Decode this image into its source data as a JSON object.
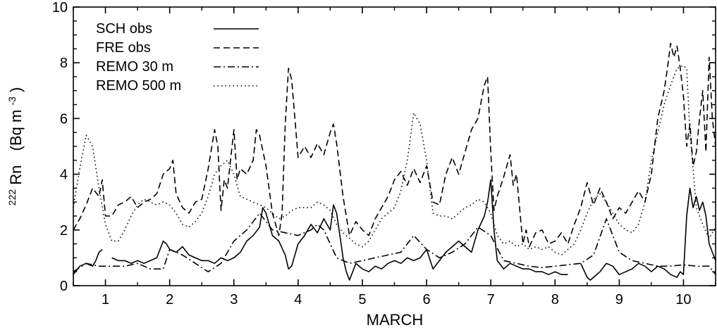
{
  "chart_data": {
    "type": "line",
    "xlabel": "MARCH",
    "ylabel_main": "Rn",
    "ylabel_superscript": "222",
    "ylabel_unit": "(Bq m",
    "ylabel_unit_exp": "-3",
    "ylabel_unit_close": ")",
    "xlim": [
      0.5,
      10.5
    ],
    "ylim": [
      0,
      10
    ],
    "xticks": [
      1,
      2,
      3,
      4,
      5,
      6,
      7,
      8,
      9,
      10
    ],
    "xtick_labels": [
      "1",
      "2",
      "3",
      "4",
      "5",
      "6",
      "7",
      "8",
      "9",
      "10"
    ],
    "yticks": [
      0,
      2,
      4,
      6,
      8,
      10
    ],
    "ytick_labels": [
      "0",
      "2",
      "4",
      "6",
      "8",
      "10"
    ],
    "legend_position": "top-left",
    "grid": false,
    "series": [
      {
        "name": "SCH    obs",
        "dash": "solid",
        "x": [
          0.5,
          0.6,
          0.7,
          0.8,
          0.85,
          0.9,
          0.95,
          1.0,
          1.1,
          1.2,
          1.3,
          1.4,
          1.5,
          1.6,
          1.7,
          1.8,
          1.9,
          1.95,
          2.0,
          2.1,
          2.2,
          2.3,
          2.4,
          2.5,
          2.6,
          2.7,
          2.8,
          2.9,
          3.0,
          3.1,
          3.2,
          3.3,
          3.4,
          3.45,
          3.5,
          3.6,
          3.7,
          3.8,
          3.85,
          3.9,
          4.0,
          4.1,
          4.2,
          4.3,
          4.4,
          4.5,
          4.55,
          4.6,
          4.65,
          4.7,
          4.75,
          4.8,
          4.9,
          5.0,
          5.1,
          5.2,
          5.3,
          5.4,
          5.5,
          5.6,
          5.7,
          5.8,
          5.9,
          6.0,
          6.1,
          6.2,
          6.3,
          6.4,
          6.5,
          6.6,
          6.7,
          6.8,
          6.9,
          6.95,
          7.0,
          7.05,
          7.1,
          7.2,
          7.3,
          7.4,
          7.5,
          7.6,
          7.7,
          7.8,
          7.9,
          8.0,
          8.1,
          8.2,
          8.3,
          8.4,
          8.5,
          8.55,
          8.6,
          8.7,
          8.8,
          8.9,
          9.0,
          9.1,
          9.2,
          9.3,
          9.4,
          9.5,
          9.6,
          9.7,
          9.8,
          9.9,
          9.95,
          10.0,
          10.05,
          10.1,
          10.15,
          10.2,
          10.25,
          10.3,
          10.35,
          10.4,
          10.5
        ],
        "y": [
          0.4,
          0.7,
          0.8,
          0.7,
          0.9,
          1.2,
          1.3,
          null,
          1.0,
          0.9,
          0.9,
          0.8,
          0.9,
          0.8,
          0.9,
          1.0,
          1.6,
          1.5,
          1.3,
          1.2,
          1.4,
          1.1,
          1.0,
          0.9,
          0.9,
          0.8,
          1.0,
          0.9,
          1.0,
          1.2,
          1.6,
          1.8,
          2.1,
          2.8,
          2.6,
          1.8,
          1.6,
          1.1,
          0.6,
          0.7,
          1.5,
          1.8,
          2.2,
          1.9,
          2.4,
          2.0,
          2.9,
          2.6,
          1.8,
          1.0,
          0.5,
          0.2,
          0.8,
          0.6,
          0.5,
          0.7,
          0.6,
          0.8,
          0.9,
          0.8,
          1.0,
          0.9,
          1.0,
          1.3,
          0.6,
          0.9,
          1.2,
          1.4,
          1.6,
          1.4,
          1.2,
          2.0,
          2.5,
          3.0,
          3.8,
          2.0,
          0.9,
          0.6,
          0.8,
          0.7,
          0.6,
          0.6,
          0.5,
          0.5,
          0.4,
          0.5,
          0.4,
          0.4,
          null,
          0.8,
          0.3,
          0.2,
          0.3,
          0.5,
          0.8,
          0.7,
          0.4,
          0.5,
          0.6,
          0.8,
          0.7,
          0.5,
          0.7,
          0.6,
          0.4,
          0.3,
          0.5,
          0.4,
          2.5,
          3.5,
          2.8,
          3.2,
          2.7,
          3.0,
          2.5,
          1.5,
          0.9
        ]
      },
      {
        "name": "FRE     obs",
        "dash": "dashed",
        "x": [
          0.5,
          0.6,
          0.7,
          0.8,
          0.9,
          0.95,
          1.0,
          1.1,
          1.2,
          1.3,
          1.4,
          1.5,
          1.6,
          1.7,
          1.8,
          1.9,
          2.0,
          2.05,
          2.1,
          2.2,
          2.3,
          2.4,
          2.5,
          2.6,
          2.7,
          2.75,
          2.8,
          2.85,
          2.9,
          3.0,
          3.05,
          3.1,
          3.2,
          3.3,
          3.35,
          3.4,
          3.5,
          3.6,
          3.7,
          3.75,
          3.8,
          3.85,
          3.9,
          3.95,
          4.0,
          4.1,
          4.2,
          4.3,
          4.4,
          4.5,
          4.55,
          4.6,
          4.7,
          4.8,
          4.9,
          5.0,
          5.1,
          5.2,
          5.3,
          5.4,
          5.5,
          5.6,
          5.7,
          5.8,
          5.9,
          6.0,
          6.1,
          6.2,
          6.3,
          6.4,
          6.5,
          6.6,
          6.7,
          6.8,
          6.9,
          6.95,
          7.0,
          7.05,
          7.1,
          7.2,
          7.3,
          7.35,
          7.4,
          7.5,
          7.55,
          7.6,
          7.7,
          7.8,
          7.9,
          8.0,
          8.1,
          8.2,
          8.3,
          8.4,
          8.5,
          8.6,
          8.7,
          8.8,
          8.9,
          9.0,
          9.1,
          9.2,
          9.3,
          9.4,
          9.5,
          9.6,
          9.7,
          9.75,
          9.8,
          9.85,
          9.9,
          9.95,
          10.0,
          10.05,
          10.1,
          10.15,
          10.2,
          10.25,
          10.3,
          10.35,
          10.4,
          10.45,
          10.5
        ],
        "y": [
          2.0,
          2.4,
          2.9,
          3.5,
          3.2,
          3.8,
          2.5,
          2.5,
          2.9,
          3.0,
          3.2,
          2.8,
          3.0,
          3.1,
          3.3,
          4.0,
          4.2,
          4.5,
          3.3,
          2.8,
          2.6,
          3.0,
          3.1,
          4.2,
          5.6,
          5.0,
          2.7,
          3.8,
          3.5,
          5.6,
          3.8,
          4.2,
          4.0,
          4.5,
          5.6,
          5.4,
          4.3,
          2.6,
          1.8,
          2.6,
          5.8,
          7.8,
          7.4,
          6.0,
          4.6,
          5.0,
          4.6,
          5.1,
          4.7,
          5.5,
          5.8,
          5.1,
          3.2,
          1.8,
          2.3,
          2.0,
          1.8,
          2.4,
          2.8,
          3.2,
          3.8,
          4.1,
          3.6,
          4.2,
          3.7,
          4.3,
          3.0,
          2.9,
          4.0,
          4.6,
          4.0,
          4.8,
          5.6,
          6.0,
          7.2,
          7.5,
          4.8,
          2.7,
          3.2,
          3.9,
          4.7,
          3.6,
          4.0,
          1.5,
          2.0,
          1.4,
          1.9,
          2.0,
          1.5,
          1.6,
          1.9,
          1.5,
          2.2,
          2.8,
          3.7,
          2.9,
          3.5,
          3.0,
          2.4,
          2.8,
          2.6,
          3.0,
          3.4,
          3.0,
          4.0,
          6.0,
          7.0,
          7.8,
          8.7,
          8.2,
          8.6,
          7.8,
          6.8,
          5.0,
          5.8,
          4.3,
          4.8,
          6.0,
          7.0,
          4.8,
          8.2,
          6.0,
          5.0
        ]
      },
      {
        "name": "REMO 30 m",
        "dash": "dashdot",
        "x": [
          0.5,
          0.7,
          0.9,
          1.1,
          1.3,
          1.5,
          1.7,
          1.9,
          2.0,
          2.2,
          2.4,
          2.6,
          2.8,
          3.0,
          3.2,
          3.4,
          3.6,
          3.8,
          4.0,
          4.2,
          4.3,
          4.4,
          4.5,
          4.6,
          4.8,
          5.0,
          5.2,
          5.4,
          5.6,
          5.8,
          6.0,
          6.2,
          6.4,
          6.6,
          6.8,
          7.0,
          7.2,
          7.4,
          7.6,
          7.8,
          8.0,
          8.2,
          8.4,
          8.6,
          8.8,
          9.0,
          9.2,
          9.4,
          9.6,
          9.8,
          10.0,
          10.2,
          10.4,
          10.5
        ],
        "y": [
          0.5,
          0.8,
          0.7,
          0.7,
          0.7,
          0.8,
          0.6,
          0.6,
          1.3,
          1.1,
          0.8,
          0.5,
          0.8,
          1.6,
          2.0,
          2.6,
          2.0,
          1.9,
          1.8,
          2.0,
          2.2,
          2.0,
          1.5,
          1.0,
          0.8,
          0.9,
          1.0,
          1.1,
          1.2,
          1.8,
          1.3,
          1.0,
          1.2,
          1.5,
          2.1,
          1.8,
          0.9,
          0.8,
          0.7,
          0.65,
          0.7,
          0.75,
          0.8,
          1.1,
          2.4,
          1.2,
          0.9,
          0.8,
          0.7,
          0.7,
          0.75,
          0.7,
          0.7,
          0.4
        ]
      },
      {
        "name": "REMO 500 m",
        "dash": "dotted",
        "x": [
          0.5,
          0.6,
          0.7,
          0.8,
          0.9,
          1.0,
          1.1,
          1.2,
          1.3,
          1.4,
          1.5,
          1.6,
          1.7,
          1.8,
          1.9,
          2.0,
          2.1,
          2.2,
          2.3,
          2.4,
          2.5,
          2.6,
          2.7,
          2.8,
          2.9,
          3.0,
          3.1,
          3.2,
          3.3,
          3.4,
          3.5,
          3.6,
          3.7,
          3.8,
          3.9,
          4.0,
          4.1,
          4.2,
          4.3,
          4.4,
          4.5,
          4.6,
          4.7,
          4.8,
          4.9,
          5.0,
          5.1,
          5.2,
          5.3,
          5.4,
          5.5,
          5.6,
          5.7,
          5.8,
          5.9,
          6.0,
          6.1,
          6.2,
          6.3,
          6.4,
          6.5,
          6.6,
          6.7,
          6.8,
          6.9,
          7.0,
          7.1,
          7.2,
          7.3,
          7.4,
          7.5,
          7.6,
          7.7,
          7.8,
          7.9,
          8.0,
          8.1,
          8.2,
          8.3,
          8.4,
          8.5,
          8.6,
          8.7,
          8.8,
          8.9,
          9.0,
          9.1,
          9.2,
          9.3,
          9.4,
          9.5,
          9.6,
          9.7,
          9.8,
          9.9,
          10.0,
          10.05,
          10.1,
          10.2,
          10.3,
          10.4,
          10.5
        ],
        "y": [
          2.8,
          4.2,
          5.4,
          5.0,
          3.5,
          2.2,
          1.6,
          1.6,
          2.0,
          2.5,
          2.9,
          3.1,
          3.0,
          2.9,
          3.0,
          2.9,
          2.6,
          2.2,
          2.1,
          2.3,
          2.6,
          3.2,
          4.0,
          4.3,
          4.5,
          4.0,
          3.2,
          3.1,
          3.0,
          2.9,
          2.8,
          2.6,
          2.4,
          2.5,
          2.7,
          2.8,
          2.8,
          2.8,
          3.0,
          2.9,
          2.7,
          2.2,
          1.9,
          1.7,
          1.5,
          1.4,
          1.6,
          2.0,
          2.4,
          2.6,
          2.8,
          3.4,
          4.5,
          6.2,
          5.8,
          4.5,
          2.6,
          2.5,
          2.5,
          2.4,
          2.6,
          2.8,
          2.9,
          3.1,
          3.0,
          2.6,
          1.8,
          1.5,
          1.6,
          1.4,
          1.5,
          1.3,
          1.4,
          1.3,
          1.4,
          1.2,
          1.1,
          1.3,
          1.5,
          2.0,
          2.6,
          3.1,
          3.3,
          3.0,
          2.6,
          2.2,
          2.0,
          1.9,
          2.2,
          3.0,
          4.5,
          5.5,
          6.5,
          7.2,
          7.8,
          7.9,
          7.8,
          5.5,
          2.8,
          2.2,
          1.7,
          2.1
        ]
      }
    ]
  }
}
